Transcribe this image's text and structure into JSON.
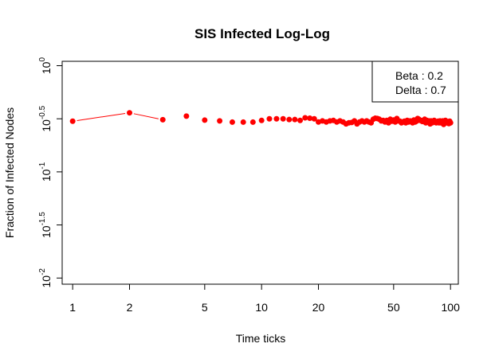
{
  "chart_data": {
    "type": "scatter",
    "title": "SIS Infected Log-Log",
    "xlabel": "Time ticks",
    "ylabel": "Fraction of Infected Nodes",
    "x_scale": "log",
    "y_scale": "log",
    "xlim": [
      0.88,
      110
    ],
    "ylim": [
      0.00875,
      1.1
    ],
    "x_ticks": [
      {
        "value": 1,
        "label": "1"
      },
      {
        "value": 2,
        "label": "2"
      },
      {
        "value": 5,
        "label": "5"
      },
      {
        "value": 10,
        "label": "10"
      },
      {
        "value": 20,
        "label": "20"
      },
      {
        "value": 50,
        "label": "50"
      },
      {
        "value": 100,
        "label": "100"
      }
    ],
    "y_ticks": [
      {
        "value": 1,
        "base": "10",
        "exp": "0"
      },
      {
        "value": 0.3162,
        "base": "10",
        "exp": "-0.5"
      },
      {
        "value": 0.1,
        "base": "10",
        "exp": "-1"
      },
      {
        "value": 0.03162,
        "base": "10",
        "exp": "-1.5"
      },
      {
        "value": 0.01,
        "base": "10",
        "exp": "-2"
      }
    ],
    "grid": false,
    "color": "#ff0000",
    "legend": {
      "placement": "top-right",
      "entries": [
        "Beta : 0.2",
        "Delta : 0.7"
      ]
    },
    "series": [
      {
        "x": [
          1,
          2,
          3,
          4,
          5,
          6,
          7,
          8,
          9,
          10,
          11,
          12,
          13,
          14,
          15,
          16,
          17,
          18,
          19,
          20,
          21,
          22,
          23,
          24,
          25,
          26,
          27,
          28,
          29,
          30,
          31,
          32,
          33,
          34,
          35,
          36,
          37,
          38,
          39,
          40,
          41,
          42,
          43,
          44,
          45,
          46,
          47,
          48,
          49,
          50,
          51,
          52,
          53,
          54,
          55,
          56,
          57,
          58,
          59,
          60,
          61,
          62,
          63,
          64,
          65,
          66,
          67,
          68,
          69,
          70,
          71,
          72,
          73,
          74,
          75,
          76,
          77,
          78,
          79,
          80,
          81,
          82,
          83,
          84,
          85,
          86,
          87,
          88,
          89,
          90,
          91,
          92,
          93,
          94,
          95,
          96,
          97,
          98,
          99,
          100
        ],
        "y": [
          0.3,
          0.36,
          0.31,
          0.335,
          0.307,
          0.302,
          0.294,
          0.294,
          0.294,
          0.305,
          0.316,
          0.316,
          0.316,
          0.311,
          0.311,
          0.305,
          0.323,
          0.32,
          0.316,
          0.295,
          0.302,
          0.295,
          0.302,
          0.305,
          0.295,
          0.302,
          0.295,
          0.283,
          0.29,
          0.292,
          0.302,
          0.283,
          0.295,
          0.302,
          0.295,
          0.302,
          0.295,
          0.29,
          0.313,
          0.32,
          0.318,
          0.313,
          0.302,
          0.305,
          0.295,
          0.305,
          0.29,
          0.313,
          0.3,
          0.308,
          0.295,
          0.318,
          0.302,
          0.3,
          0.29,
          0.295,
          0.3,
          0.29,
          0.305,
          0.295,
          0.302,
          0.3,
          0.29,
          0.308,
          0.295,
          0.3,
          0.318,
          0.313,
          0.305,
          0.305,
          0.298,
          0.298,
          0.313,
          0.29,
          0.305,
          0.295,
          0.302,
          0.283,
          0.302,
          0.29,
          0.3,
          0.305,
          0.298,
          0.29,
          0.295,
          0.3,
          0.29,
          0.302,
          0.29,
          0.298,
          0.302,
          0.28,
          0.3,
          0.305,
          0.29,
          0.298,
          0.29,
          0.285,
          0.3,
          0.29
        ],
        "line_segments": [
          [
            1,
            2
          ],
          [
            2,
            3
          ]
        ]
      }
    ]
  }
}
